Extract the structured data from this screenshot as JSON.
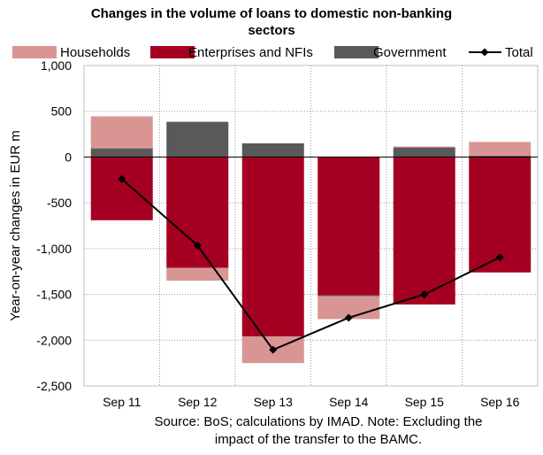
{
  "chart_data": {
    "type": "bar",
    "title_line1": "Changes in the volume of loans to domestic non-banking",
    "title_line2": "sectors",
    "source_line1": "Source: BoS; calculations by IMAD. Note: Excluding the",
    "source_line2": "impact of the transfer to the BAMC.",
    "ylabel": "Year-on-year changes in EUR m",
    "xlabel": "",
    "ylim": [
      -2500,
      1000
    ],
    "yticks": [
      1000,
      500,
      0,
      -500,
      -1000,
      -1500,
      -2000,
      -2500
    ],
    "ytick_labels": [
      "1,000",
      "500",
      "0",
      "-500",
      "-1,000",
      "-1,500",
      "-2,000",
      "-2,500"
    ],
    "categories": [
      "Sep 11",
      "Sep 12",
      "Sep 13",
      "Sep 14",
      "Sep 15",
      "Sep 16"
    ],
    "grid": true,
    "legend_position": "top",
    "series": [
      {
        "name": "Households",
        "kind": "bar",
        "color": "#d99594",
        "values": [
          350,
          -140,
          -290,
          -250,
          10,
          150
        ]
      },
      {
        "name": "Enterprises and NFIs",
        "kind": "bar",
        "color": "#a50021",
        "values": [
          -690,
          -1210,
          -1960,
          -1510,
          -1610,
          -1260
        ]
      },
      {
        "name": "Government",
        "kind": "bar",
        "color": "#595959",
        "values": [
          95,
          385,
          150,
          -10,
          105,
          15
        ]
      },
      {
        "name": "Total",
        "kind": "line",
        "color": "#000000",
        "values": [
          -240,
          -965,
          -2105,
          -1755,
          -1500,
          -1095
        ]
      }
    ]
  }
}
